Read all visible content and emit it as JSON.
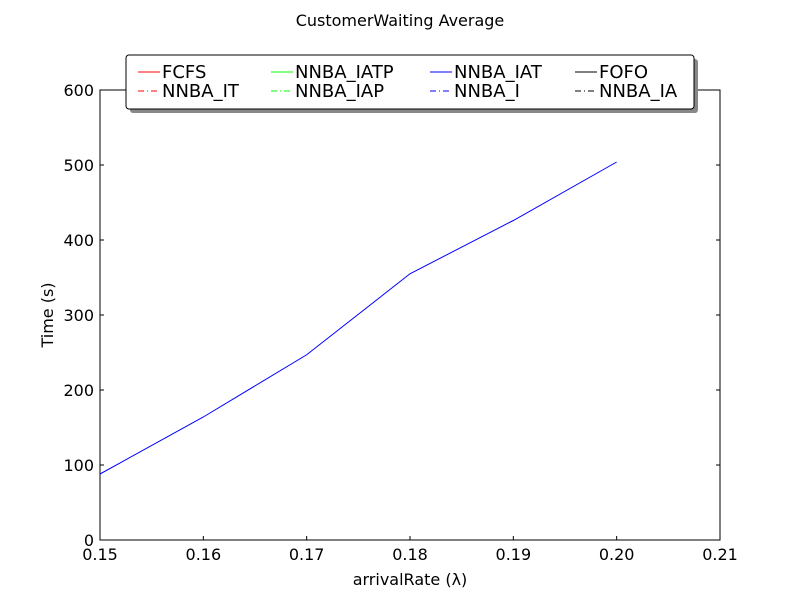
{
  "chart_data": {
    "type": "line",
    "title": "CustomerWaiting Average",
    "xlabel": "arrivalRate (λ)",
    "ylabel": "Time (s)",
    "xlim": [
      0.15,
      0.21
    ],
    "ylim": [
      0,
      600
    ],
    "x_ticks": [
      "0.15",
      "0.16",
      "0.17",
      "0.18",
      "0.19",
      "0.20",
      "0.21"
    ],
    "y_ticks": [
      "0",
      "100",
      "200",
      "300",
      "400",
      "500",
      "600"
    ],
    "grid": false,
    "legend_position": "top-center",
    "series": [
      {
        "name": "FCFS",
        "color": "#ff0000",
        "style": "solid",
        "x": [],
        "y": []
      },
      {
        "name": "NNBA_IATP",
        "color": "#00ff00",
        "style": "solid",
        "x": [],
        "y": []
      },
      {
        "name": "NNBA_IAT",
        "color": "#0000ff",
        "style": "solid",
        "x": [
          0.15,
          0.16,
          0.17,
          0.18,
          0.19,
          0.2
        ],
        "y": [
          88,
          164,
          247,
          355,
          426,
          504
        ]
      },
      {
        "name": "FOFO",
        "color": "#000000",
        "style": "solid",
        "x": [],
        "y": []
      },
      {
        "name": "NNBA_IT",
        "color": "#ff0000",
        "style": "dashdot",
        "x": [],
        "y": []
      },
      {
        "name": "NNBA_IAP",
        "color": "#00ff00",
        "style": "dashdot",
        "x": [],
        "y": []
      },
      {
        "name": "NNBA_I",
        "color": "#0000ff",
        "style": "dashdot",
        "x": [],
        "y": []
      },
      {
        "name": "NNBA_IA",
        "color": "#000000",
        "style": "dashdot",
        "x": [],
        "y": []
      }
    ]
  }
}
